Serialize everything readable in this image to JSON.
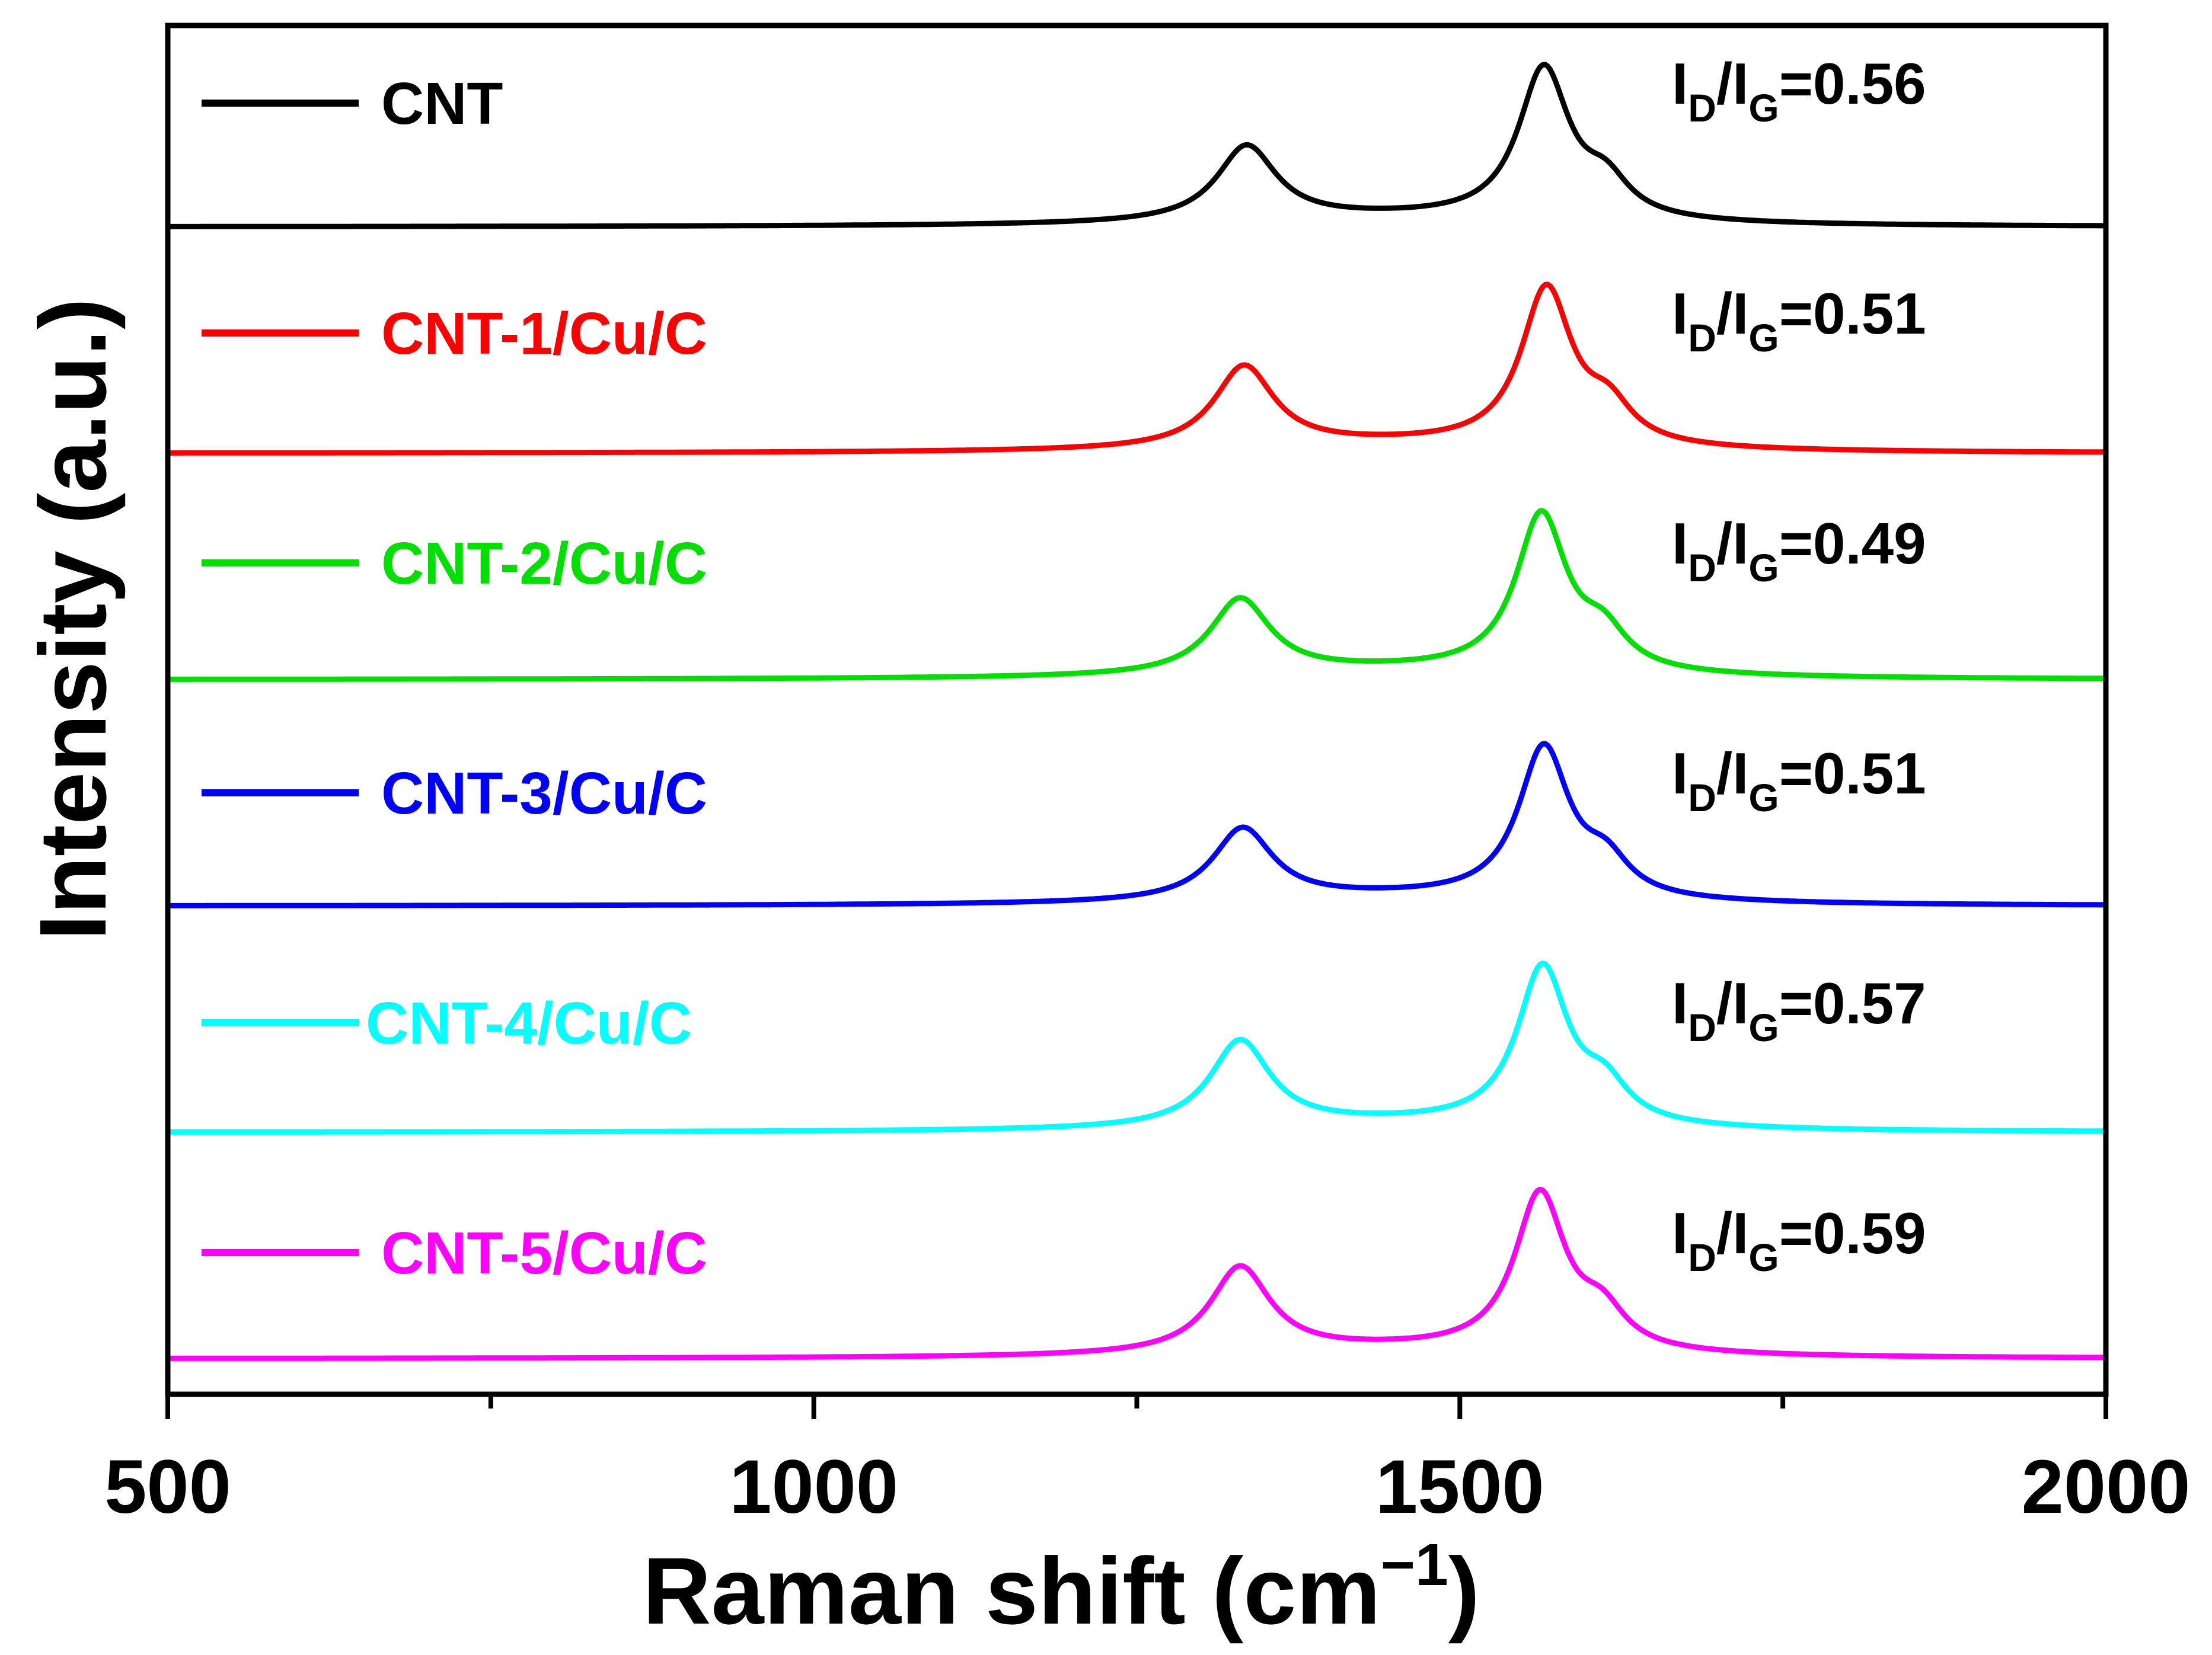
{
  "chart_data": {
    "type": "line",
    "title": "",
    "xlabel": {
      "main": "Raman shift (cm",
      "sup": "−1",
      "close": ")"
    },
    "ylabel": "Intensity (a.u.)",
    "xlim": [
      500,
      2000
    ],
    "x_ticks": [
      500,
      1000,
      1500,
      2000
    ],
    "x_minor_ticks": [
      750,
      1250,
      1750
    ],
    "x_tick_labels": [
      "500",
      "1000",
      "1500",
      "2000"
    ],
    "y_ticks_shown": false,
    "legend_position": "top-left",
    "d_band_label": "D",
    "g_band_label": "G",
    "series": [
      {
        "name": "CNT",
        "color": "#000000",
        "offset": 5.0,
        "baseline": 0.0,
        "d_peak": {
          "center": 1335,
          "height": 0.48
        },
        "g_peak": {
          "center": 1565,
          "height": 0.96
        },
        "ratio_value": "0.56"
      },
      {
        "name": "CNT-1/Cu/C",
        "color": "#ff0000",
        "offset": 4.0,
        "baseline": 0.0,
        "d_peak": {
          "center": 1333,
          "height": 0.52
        },
        "g_peak": {
          "center": 1567,
          "height": 1.0
        },
        "ratio_value": "0.51"
      },
      {
        "name": "CNT-2/Cu/C",
        "color": "#00e000",
        "offset": 3.0,
        "baseline": 0.0,
        "d_peak": {
          "center": 1330,
          "height": 0.48
        },
        "g_peak": {
          "center": 1563,
          "height": 1.0
        },
        "ratio_value": "0.49"
      },
      {
        "name": "CNT-3/Cu/C",
        "color": "#0000ff",
        "offset": 2.0,
        "baseline": 0.0,
        "d_peak": {
          "center": 1332,
          "height": 0.46
        },
        "g_peak": {
          "center": 1565,
          "height": 0.96
        },
        "ratio_value": "0.51"
      },
      {
        "name": "CNT-4/Cu/C",
        "color": "#00ffff",
        "offset": 1.0,
        "baseline": 0.0,
        "d_peak": {
          "center": 1330,
          "height": 0.55
        },
        "g_peak": {
          "center": 1564,
          "height": 1.0
        },
        "ratio_value": "0.57"
      },
      {
        "name": "CNT-5/Cu/C",
        "color": "#ff00ff",
        "offset": 0.0,
        "baseline": 0.0,
        "d_peak": {
          "center": 1330,
          "height": 0.55
        },
        "g_peak": {
          "center": 1562,
          "height": 1.0
        },
        "ratio_value": "0.59"
      }
    ]
  }
}
